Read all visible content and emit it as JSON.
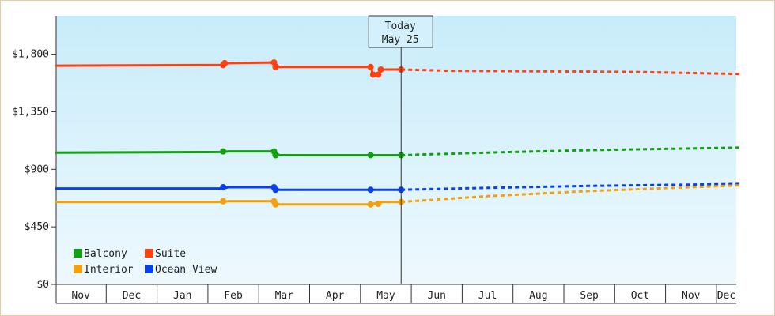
{
  "chart_data": {
    "type": "line",
    "title": "",
    "xlabel": "",
    "ylabel": "",
    "ylim": [
      0,
      2100
    ],
    "yticks": [
      {
        "value": 0,
        "label": "$0"
      },
      {
        "value": 450,
        "label": "$450"
      },
      {
        "value": 900,
        "label": "$900"
      },
      {
        "value": 1350,
        "label": "$1,350"
      },
      {
        "value": 1800,
        "label": "$1,800"
      }
    ],
    "month_labels": [
      "Nov",
      "Dec",
      "Jan",
      "Feb",
      "Mar",
      "Apr",
      "May",
      "Jun",
      "Jul",
      "Aug",
      "Sep",
      "Oct",
      "Nov",
      "Dec"
    ],
    "today_label": [
      "Today",
      "May 25"
    ],
    "today_month": 6.8,
    "legend_placement": "bottom-left",
    "grid": false,
    "series": [
      {
        "name": "Suite",
        "color": "#ff4010",
        "actual": [
          [
            0,
            1710
          ],
          [
            3.3,
            1715
          ],
          [
            3.4,
            1730
          ],
          [
            4.3,
            1735
          ],
          [
            4.4,
            1700
          ],
          [
            6.2,
            1700
          ],
          [
            6.25,
            1640
          ],
          [
            6.35,
            1640
          ],
          [
            6.4,
            1680
          ],
          [
            6.8,
            1680
          ]
        ],
        "points": [
          [
            3.3,
            1715
          ],
          [
            3.33,
            1730
          ],
          [
            4.3,
            1735
          ],
          [
            4.33,
            1700
          ],
          [
            6.2,
            1700
          ],
          [
            6.25,
            1640
          ],
          [
            6.35,
            1640
          ],
          [
            6.4,
            1680
          ],
          [
            6.8,
            1680
          ]
        ],
        "forecast": [
          [
            6.8,
            1680
          ],
          [
            7.8,
            1670
          ],
          [
            10,
            1665
          ],
          [
            11.5,
            1660
          ],
          [
            13.5,
            1645
          ]
        ]
      },
      {
        "name": "Balcony",
        "color": "#10a010",
        "actual": [
          [
            0,
            1030
          ],
          [
            3.3,
            1035
          ],
          [
            3.4,
            1040
          ],
          [
            4.3,
            1040
          ],
          [
            4.4,
            1010
          ],
          [
            6.8,
            1010
          ]
        ],
        "points": [
          [
            3.3,
            1040
          ],
          [
            4.3,
            1040
          ],
          [
            4.33,
            1010
          ],
          [
            6.2,
            1010
          ],
          [
            6.8,
            1010
          ]
        ],
        "forecast": [
          [
            6.8,
            1010
          ],
          [
            8.5,
            1030
          ],
          [
            10.5,
            1050
          ],
          [
            13.5,
            1070
          ]
        ]
      },
      {
        "name": "Ocean View",
        "color": "#0840f0",
        "actual": [
          [
            0,
            750
          ],
          [
            3.3,
            750
          ],
          [
            3.4,
            760
          ],
          [
            4.3,
            760
          ],
          [
            4.4,
            740
          ],
          [
            6.8,
            740
          ]
        ],
        "points": [
          [
            3.3,
            760
          ],
          [
            4.3,
            760
          ],
          [
            4.33,
            740
          ],
          [
            6.2,
            740
          ],
          [
            6.8,
            740
          ]
        ],
        "forecast": [
          [
            6.8,
            740
          ],
          [
            8.5,
            755
          ],
          [
            10.5,
            770
          ],
          [
            13.5,
            785
          ]
        ]
      },
      {
        "name": "Interior",
        "color": "#f5a00a",
        "actual": [
          [
            0,
            645
          ],
          [
            3.3,
            645
          ],
          [
            3.4,
            650
          ],
          [
            4.3,
            650
          ],
          [
            4.4,
            625
          ],
          [
            6.2,
            625
          ],
          [
            6.4,
            645
          ],
          [
            6.8,
            645
          ]
        ],
        "points": [
          [
            3.3,
            650
          ],
          [
            4.3,
            650
          ],
          [
            4.33,
            625
          ],
          [
            6.2,
            625
          ],
          [
            6.35,
            630
          ],
          [
            6.8,
            645
          ]
        ],
        "forecast": [
          [
            6.8,
            645
          ],
          [
            8.5,
            690
          ],
          [
            10.5,
            730
          ],
          [
            13.5,
            775
          ]
        ]
      }
    ],
    "legend": [
      {
        "name": "Balcony",
        "color": "#10a010"
      },
      {
        "name": "Suite",
        "color": "#ff4010"
      },
      {
        "name": "Interior",
        "color": "#f5a00a"
      },
      {
        "name": "Ocean View",
        "color": "#0840f0"
      }
    ]
  }
}
